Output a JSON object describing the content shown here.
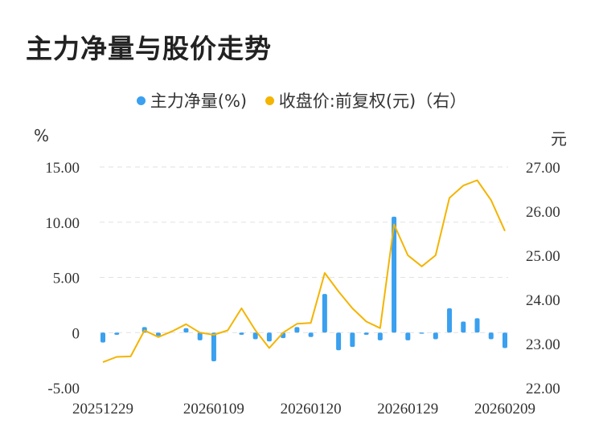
{
  "title": "主力净量与股价走势",
  "legend": {
    "series1": "主力净量(%)",
    "series2": "收盘价:前复权(元)（右）"
  },
  "units": {
    "left": "%",
    "right": "元"
  },
  "colors": {
    "bars": "#3aa0ef",
    "line": "#f4b400",
    "grid": "#e2e2e2"
  },
  "chart_data": {
    "type": "bar",
    "x_tick_labels": [
      "20251229",
      "20260109",
      "20260120",
      "20260129",
      "20260209"
    ],
    "x": [
      "20251229",
      "20251230",
      "20251231",
      "20260102",
      "20260105",
      "20260106",
      "20260107",
      "20260108",
      "20260109",
      "20260112",
      "20260113",
      "20260114",
      "20260115",
      "20260116",
      "20260119",
      "20260120",
      "20260121",
      "20260122",
      "20260123",
      "20260126",
      "20260127",
      "20260128",
      "20260129",
      "20260130",
      "20260202",
      "20260203",
      "20260204",
      "20260205",
      "20260206",
      "20260209"
    ],
    "series": [
      {
        "name": "主力净量(%)",
        "type": "bar",
        "axis": "left",
        "values": [
          -0.9,
          -0.2,
          0.0,
          0.5,
          -0.3,
          0.0,
          0.4,
          -0.7,
          -2.6,
          0.0,
          -0.2,
          -0.6,
          -0.8,
          -0.5,
          0.5,
          -0.4,
          3.5,
          -1.6,
          -1.3,
          -0.2,
          -0.7,
          10.5,
          -0.7,
          -0.1,
          -0.6,
          2.2,
          1.0,
          1.3,
          -0.6,
          -1.4
        ]
      },
      {
        "name": "收盘价:前复权(元)（右）",
        "type": "line",
        "axis": "right",
        "values": [
          22.58,
          22.7,
          22.71,
          23.3,
          23.15,
          23.28,
          23.44,
          23.25,
          23.2,
          23.3,
          23.8,
          23.3,
          22.9,
          23.25,
          23.45,
          23.47,
          24.6,
          24.18,
          23.8,
          23.5,
          23.35,
          25.7,
          25.0,
          24.75,
          25.0,
          26.3,
          26.58,
          26.7,
          26.25,
          25.55
        ]
      }
    ],
    "y_left": {
      "ylim": [
        -5,
        15
      ],
      "ticks": [
        "-5.00",
        "0",
        "5.00",
        "10.00",
        "15.00"
      ]
    },
    "y_right": {
      "ylim": [
        22,
        27
      ],
      "ticks": [
        "22.00",
        "23.00",
        "24.00",
        "25.00",
        "26.00",
        "27.00"
      ]
    },
    "grid": true,
    "legend_position": "top"
  }
}
